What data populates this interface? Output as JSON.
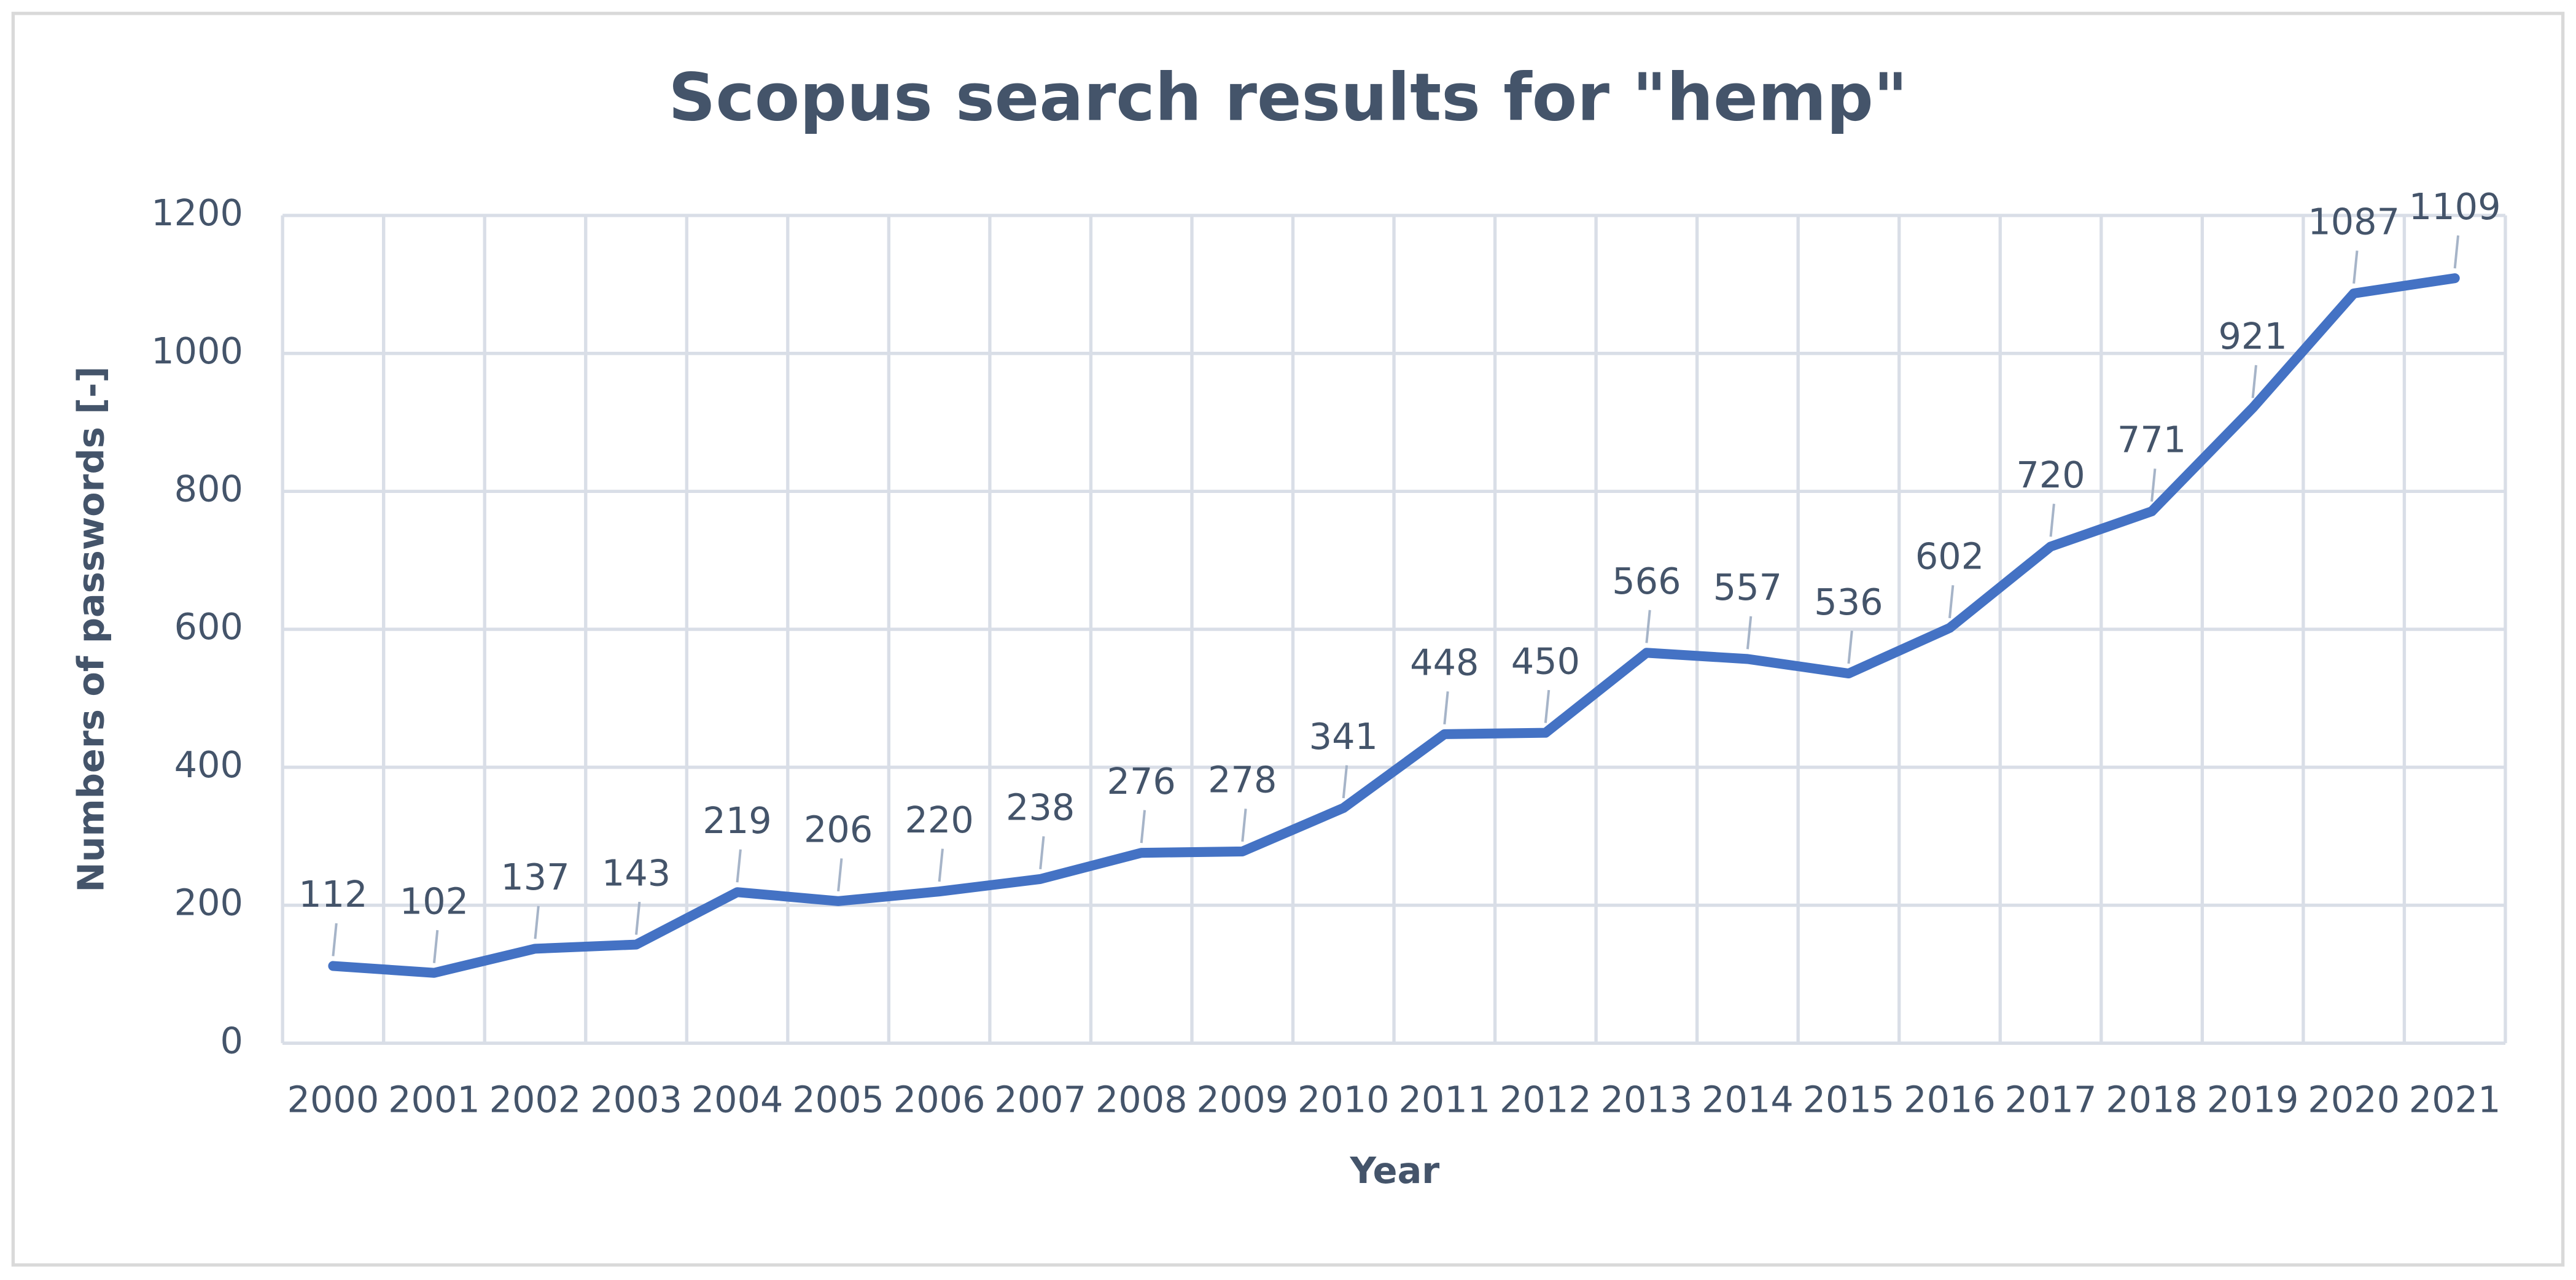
{
  "chart_data": {
    "type": "line",
    "title": "Scopus search results for \"hemp\"",
    "x_label": "Year",
    "y_label": "Numbers of passwords [-]",
    "categories": [
      "2000",
      "2001",
      "2002",
      "2003",
      "2004",
      "2005",
      "2006",
      "2007",
      "2008",
      "2009",
      "2010",
      "2011",
      "2012",
      "2013",
      "2014",
      "2015",
      "2016",
      "2017",
      "2018",
      "2019",
      "2020",
      "2021"
    ],
    "series": [
      {
        "name": "Scopus search results",
        "color": "#4472c4",
        "values": [
          112,
          102,
          137,
          143,
          219,
          206,
          220,
          238,
          276,
          278,
          341,
          448,
          450,
          566,
          557,
          536,
          602,
          720,
          771,
          921,
          1087,
          1109
        ]
      }
    ],
    "ylim": [
      0,
      1200
    ],
    "yticks": [
      0,
      200,
      400,
      600,
      800,
      1000,
      1200
    ],
    "grid": true,
    "data_labels": true
  }
}
